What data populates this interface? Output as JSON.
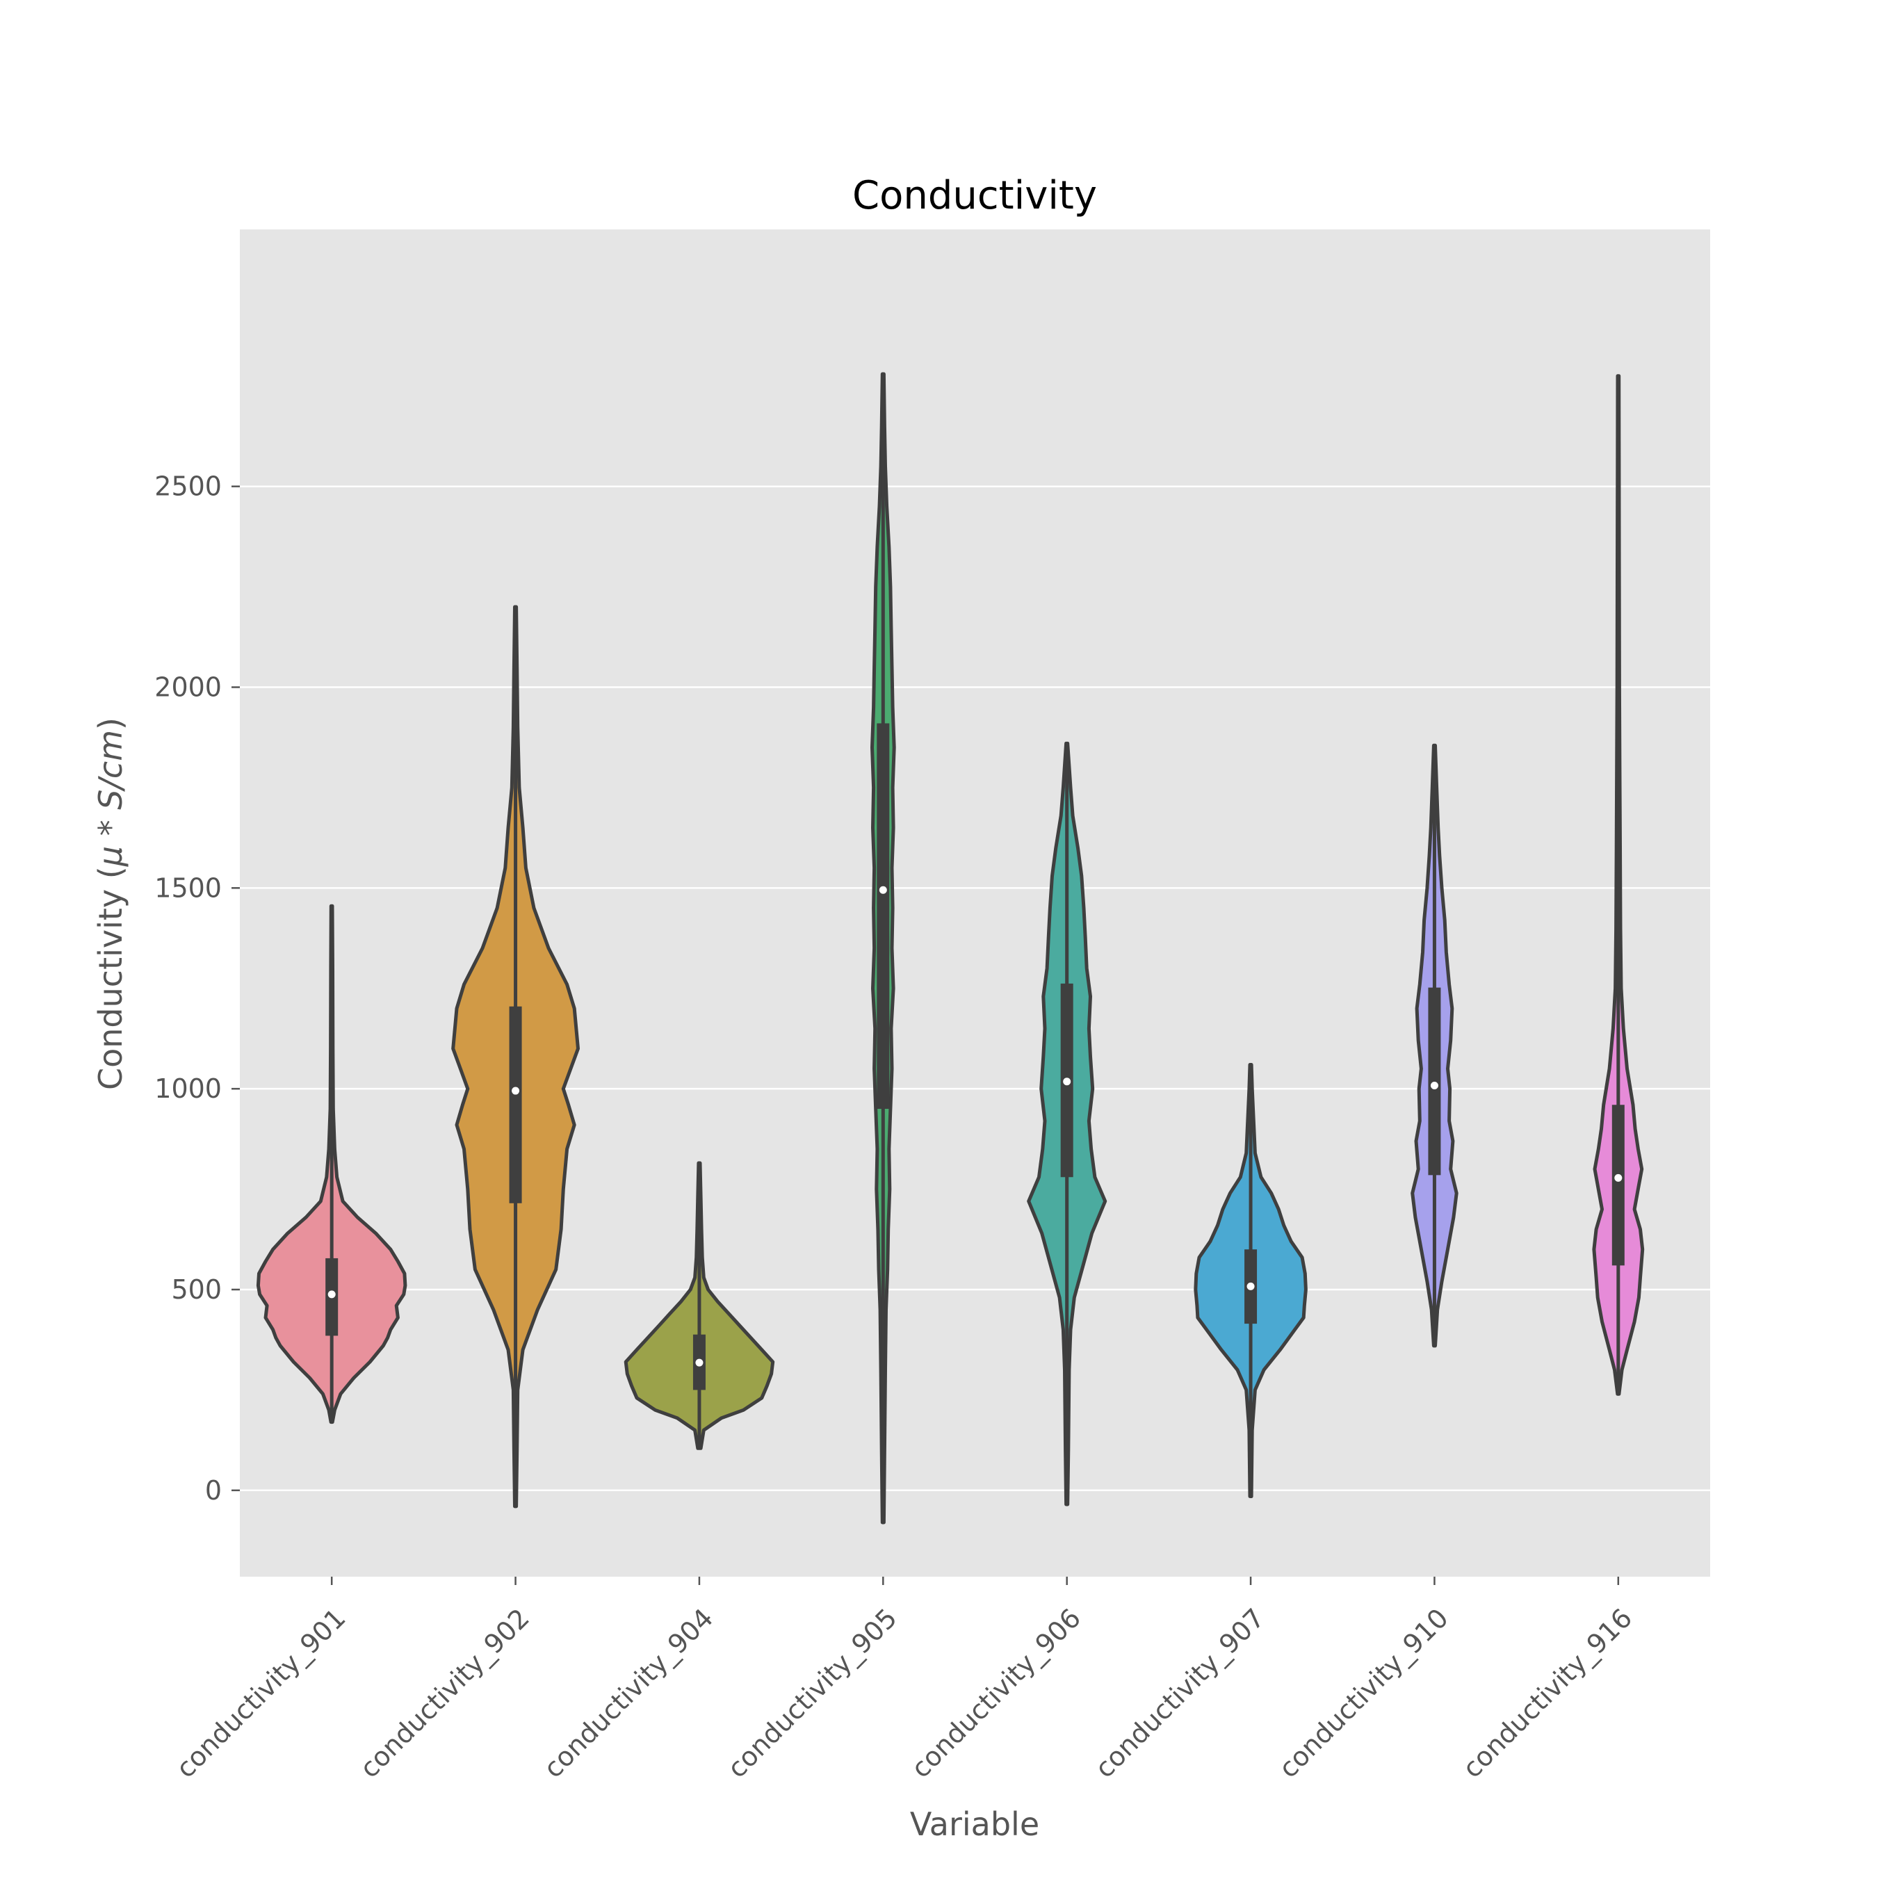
{
  "chart_data": {
    "type": "violin",
    "title": "Conductivity",
    "xlabel": "Variable",
    "ylabel": "Conductivity ($\\mu*S/cm$)",
    "ylabel_parts": {
      "text": "Conductivity (",
      "math": "μ * S/cm",
      "close": ")"
    },
    "ylim": [
      -215,
      3140
    ],
    "yticks": [
      0,
      500,
      1000,
      1500,
      2000,
      2500
    ],
    "grid": true,
    "legend": "none",
    "series": [
      {
        "category": "conductivity_901",
        "color": "#e8919c",
        "min": 170,
        "q1": 385,
        "median": 488,
        "q3": 578,
        "max": 1455,
        "density": [
          [
            170,
            0.01
          ],
          [
            200,
            0.04
          ],
          [
            240,
            0.12
          ],
          [
            280,
            0.3
          ],
          [
            320,
            0.52
          ],
          [
            360,
            0.7
          ],
          [
            380,
            0.76
          ],
          [
            400,
            0.8
          ],
          [
            430,
            0.9
          ],
          [
            460,
            0.88
          ],
          [
            488,
            0.98
          ],
          [
            510,
            1.0
          ],
          [
            540,
            0.99
          ],
          [
            570,
            0.9
          ],
          [
            600,
            0.8
          ],
          [
            640,
            0.6
          ],
          [
            680,
            0.35
          ],
          [
            720,
            0.15
          ],
          [
            780,
            0.07
          ],
          [
            850,
            0.04
          ],
          [
            950,
            0.02
          ],
          [
            1100,
            0.015
          ],
          [
            1300,
            0.012
          ],
          [
            1455,
            0.008
          ]
        ]
      },
      {
        "category": "conductivity_902",
        "color": "#d19a46",
        "min": -40,
        "q1": 715,
        "median": 995,
        "q3": 1205,
        "max": 2200,
        "density": [
          [
            -40,
            0.01
          ],
          [
            100,
            0.02
          ],
          [
            250,
            0.03
          ],
          [
            350,
            0.1
          ],
          [
            450,
            0.3
          ],
          [
            550,
            0.55
          ],
          [
            650,
            0.62
          ],
          [
            750,
            0.65
          ],
          [
            850,
            0.7
          ],
          [
            910,
            0.8
          ],
          [
            960,
            0.72
          ],
          [
            1000,
            0.65
          ],
          [
            1050,
            0.75
          ],
          [
            1100,
            0.85
          ],
          [
            1200,
            0.8
          ],
          [
            1260,
            0.7
          ],
          [
            1350,
            0.45
          ],
          [
            1450,
            0.25
          ],
          [
            1550,
            0.14
          ],
          [
            1650,
            0.1
          ],
          [
            1750,
            0.05
          ],
          [
            1900,
            0.03
          ],
          [
            2050,
            0.02
          ],
          [
            2200,
            0.01
          ]
        ]
      },
      {
        "category": "conductivity_904",
        "color": "#9ba24a",
        "min": 105,
        "q1": 250,
        "median": 318,
        "q3": 388,
        "max": 815,
        "density": [
          [
            105,
            0.02
          ],
          [
            150,
            0.06
          ],
          [
            180,
            0.3
          ],
          [
            200,
            0.6
          ],
          [
            230,
            0.85
          ],
          [
            260,
            0.92
          ],
          [
            290,
            0.98
          ],
          [
            320,
            1.0
          ],
          [
            350,
            0.85
          ],
          [
            380,
            0.7
          ],
          [
            410,
            0.55
          ],
          [
            440,
            0.4
          ],
          [
            470,
            0.25
          ],
          [
            500,
            0.12
          ],
          [
            530,
            0.06
          ],
          [
            580,
            0.04
          ],
          [
            650,
            0.03
          ],
          [
            730,
            0.02
          ],
          [
            815,
            0.01
          ]
        ]
      },
      {
        "category": "conductivity_905",
        "color": "#4bab70",
        "min": -80,
        "q1": 950,
        "median": 1495,
        "q3": 1910,
        "max": 2780,
        "density": [
          [
            -80,
            0.01
          ],
          [
            100,
            0.02
          ],
          [
            300,
            0.03
          ],
          [
            450,
            0.04
          ],
          [
            550,
            0.06
          ],
          [
            650,
            0.07
          ],
          [
            750,
            0.09
          ],
          [
            850,
            0.08
          ],
          [
            950,
            0.1
          ],
          [
            1050,
            0.12
          ],
          [
            1150,
            0.11
          ],
          [
            1250,
            0.14
          ],
          [
            1350,
            0.12
          ],
          [
            1450,
            0.13
          ],
          [
            1550,
            0.12
          ],
          [
            1650,
            0.14
          ],
          [
            1750,
            0.13
          ],
          [
            1850,
            0.15
          ],
          [
            1950,
            0.13
          ],
          [
            2050,
            0.12
          ],
          [
            2150,
            0.11
          ],
          [
            2250,
            0.1
          ],
          [
            2350,
            0.08
          ],
          [
            2450,
            0.05
          ],
          [
            2550,
            0.03
          ],
          [
            2650,
            0.02
          ],
          [
            2780,
            0.01
          ]
        ]
      },
      {
        "category": "conductivity_906",
        "color": "#4bab9f",
        "min": -35,
        "q1": 780,
        "median": 1018,
        "q3": 1262,
        "max": 1860,
        "density": [
          [
            -35,
            0.01
          ],
          [
            100,
            0.02
          ],
          [
            300,
            0.03
          ],
          [
            400,
            0.05
          ],
          [
            480,
            0.1
          ],
          [
            560,
            0.22
          ],
          [
            640,
            0.34
          ],
          [
            720,
            0.52
          ],
          [
            780,
            0.38
          ],
          [
            850,
            0.33
          ],
          [
            920,
            0.3
          ],
          [
            1000,
            0.35
          ],
          [
            1080,
            0.32
          ],
          [
            1150,
            0.3
          ],
          [
            1230,
            0.32
          ],
          [
            1300,
            0.27
          ],
          [
            1380,
            0.25
          ],
          [
            1450,
            0.23
          ],
          [
            1530,
            0.2
          ],
          [
            1600,
            0.15
          ],
          [
            1680,
            0.08
          ],
          [
            1750,
            0.05
          ],
          [
            1860,
            0.01
          ]
        ]
      },
      {
        "category": "conductivity_907",
        "color": "#4ba9d2",
        "min": -15,
        "q1": 415,
        "median": 508,
        "q3": 600,
        "max": 1060,
        "density": [
          [
            -15,
            0.01
          ],
          [
            150,
            0.02
          ],
          [
            250,
            0.06
          ],
          [
            300,
            0.18
          ],
          [
            350,
            0.4
          ],
          [
            400,
            0.6
          ],
          [
            430,
            0.72
          ],
          [
            460,
            0.73
          ],
          [
            500,
            0.75
          ],
          [
            540,
            0.74
          ],
          [
            580,
            0.7
          ],
          [
            620,
            0.55
          ],
          [
            660,
            0.45
          ],
          [
            700,
            0.38
          ],
          [
            740,
            0.28
          ],
          [
            780,
            0.14
          ],
          [
            840,
            0.06
          ],
          [
            920,
            0.04
          ],
          [
            1000,
            0.02
          ],
          [
            1060,
            0.01
          ]
        ]
      },
      {
        "category": "conductivity_910",
        "color": "#a6a1ec",
        "min": 360,
        "q1": 785,
        "median": 1008,
        "q3": 1252,
        "max": 1855,
        "density": [
          [
            360,
            0.01
          ],
          [
            450,
            0.04
          ],
          [
            520,
            0.1
          ],
          [
            600,
            0.18
          ],
          [
            680,
            0.26
          ],
          [
            740,
            0.3
          ],
          [
            800,
            0.22
          ],
          [
            870,
            0.25
          ],
          [
            920,
            0.2
          ],
          [
            1000,
            0.21
          ],
          [
            1050,
            0.18
          ],
          [
            1120,
            0.22
          ],
          [
            1200,
            0.24
          ],
          [
            1260,
            0.2
          ],
          [
            1340,
            0.16
          ],
          [
            1420,
            0.14
          ],
          [
            1500,
            0.1
          ],
          [
            1580,
            0.07
          ],
          [
            1650,
            0.05
          ],
          [
            1750,
            0.03
          ],
          [
            1855,
            0.01
          ]
        ]
      },
      {
        "category": "conductivity_916",
        "color": "#e68bd8",
        "min": 240,
        "q1": 560,
        "median": 778,
        "q3": 960,
        "max": 2775,
        "density": [
          [
            240,
            0.01
          ],
          [
            300,
            0.05
          ],
          [
            350,
            0.12
          ],
          [
            420,
            0.22
          ],
          [
            480,
            0.28
          ],
          [
            530,
            0.3
          ],
          [
            600,
            0.33
          ],
          [
            650,
            0.3
          ],
          [
            700,
            0.22
          ],
          [
            760,
            0.28
          ],
          [
            800,
            0.32
          ],
          [
            850,
            0.27
          ],
          [
            900,
            0.23
          ],
          [
            960,
            0.2
          ],
          [
            1050,
            0.12
          ],
          [
            1150,
            0.07
          ],
          [
            1250,
            0.04
          ],
          [
            1400,
            0.03
          ],
          [
            1600,
            0.025
          ],
          [
            1800,
            0.02
          ],
          [
            2000,
            0.015
          ],
          [
            2300,
            0.012
          ],
          [
            2550,
            0.01
          ],
          [
            2775,
            0.008
          ]
        ]
      }
    ]
  }
}
